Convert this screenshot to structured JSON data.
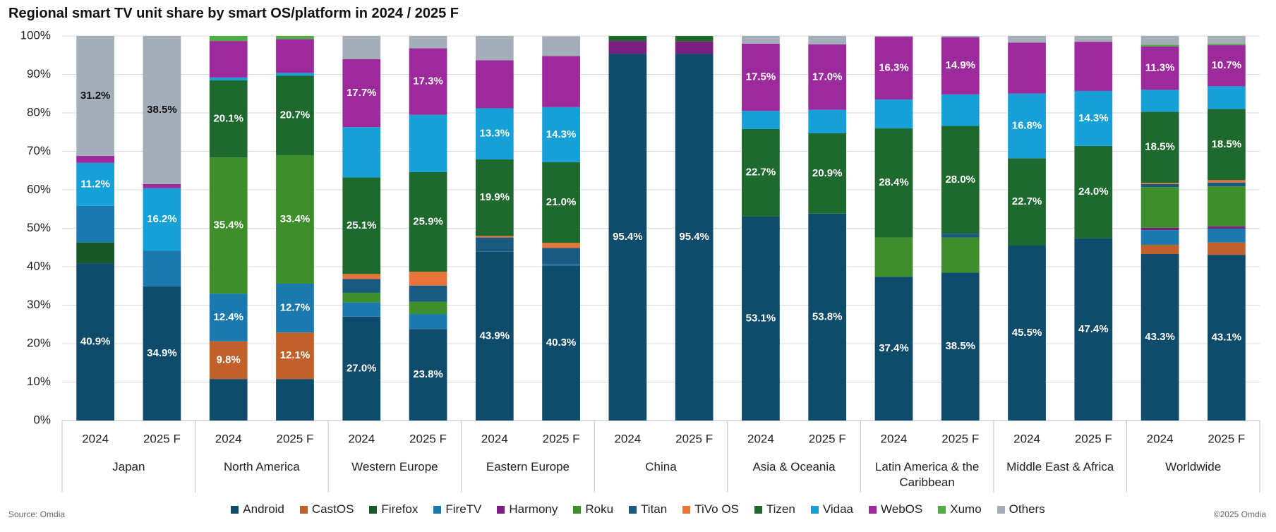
{
  "chart_data": {
    "type": "stacked_bar",
    "title": "Regional smart TV unit share by smart OS/platform in 2024 / 2025 F",
    "source": "Source: Omdia",
    "copyright": "©2025 Omdia",
    "categories": [
      "2024",
      "2025 F",
      "2024",
      "2025 F",
      "2024",
      "2025 F",
      "2024",
      "2025 F",
      "2024",
      "2025 F",
      "2024",
      "2025 F",
      "2024",
      "2025 F",
      "2024",
      "2025 F",
      "2024",
      "2025 F"
    ],
    "groups": [
      "Japan",
      "North America",
      "Western Europe",
      "Eastern Europe",
      "China",
      "Asia & Oceania",
      "Latin America & the Caribbean",
      "Middle East & Africa",
      "Worldwide"
    ],
    "ylim": [
      0,
      100
    ],
    "yticks": [
      {
        "value": 0,
        "label": "0%"
      },
      {
        "value": 10,
        "label": "10%"
      },
      {
        "value": 20,
        "label": "20%"
      },
      {
        "value": 30,
        "label": "30%"
      },
      {
        "value": 40,
        "label": "40%"
      },
      {
        "value": 50,
        "label": "50%"
      },
      {
        "value": 60,
        "label": "60%"
      },
      {
        "value": 70,
        "label": "70%"
      },
      {
        "value": 80,
        "label": "80%"
      },
      {
        "value": 90,
        "label": "90%"
      },
      {
        "value": 100,
        "label": "100%"
      }
    ],
    "grid": true,
    "legend": "bottom",
    "series": [
      {
        "name": "Android",
        "color": "#0f4c6b",
        "values": [
          40.9,
          34.9,
          10.8,
          10.8,
          27.0,
          23.8,
          43.9,
          40.3,
          95.4,
          95.4,
          53.1,
          53.8,
          37.4,
          38.5,
          45.5,
          47.4,
          43.3,
          43.1
        ],
        "value_labels": [
          "40.9%",
          "34.9%",
          null,
          null,
          "27.0%",
          "23.8%",
          "43.9%",
          "40.3%",
          "95.4%",
          "95.4%",
          "53.1%",
          "53.8%",
          "37.4%",
          "38.5%",
          "45.5%",
          "47.4%",
          "43.3%",
          "43.1%"
        ]
      },
      {
        "name": "CastOS",
        "color": "#c0612b",
        "values": [
          0,
          0,
          9.8,
          12.1,
          0,
          0,
          0,
          0,
          0,
          0,
          0,
          0,
          0,
          0,
          0,
          0,
          2.4,
          3.2
        ],
        "value_labels": [
          null,
          null,
          "9.8%",
          "12.1%",
          null,
          null,
          null,
          null,
          null,
          null,
          null,
          null,
          null,
          null,
          null,
          null,
          null,
          null
        ]
      },
      {
        "name": "Firefox",
        "color": "#175a27",
        "values": [
          5.4,
          0,
          0,
          0,
          0,
          0,
          0,
          0,
          0,
          0,
          0,
          0,
          0,
          0,
          0,
          0,
          0,
          0
        ]
      },
      {
        "name": "FireTV",
        "color": "#1a7aaf",
        "values": [
          9.5,
          9.3,
          12.4,
          12.7,
          3.7,
          3.9,
          0,
          0.3,
          0,
          0,
          0,
          0,
          0,
          0,
          0,
          0,
          3.8,
          3.6
        ],
        "value_labels": [
          null,
          null,
          "12.4%",
          "12.7%",
          null,
          null,
          null,
          null,
          null,
          null,
          null,
          null,
          null,
          null,
          null,
          null,
          null,
          null
        ]
      },
      {
        "name": "Harmony",
        "color": "#7a1f80",
        "values": [
          0,
          0,
          0,
          0,
          0,
          0,
          0,
          0,
          3.3,
          3.2,
          0,
          0,
          0,
          0,
          0,
          0,
          0.6,
          0.6
        ]
      },
      {
        "name": "Roku",
        "color": "#3e8e2c",
        "values": [
          0,
          0,
          35.4,
          33.4,
          2.5,
          3.2,
          0,
          0,
          0,
          0,
          0,
          0,
          10.2,
          9.1,
          0,
          0,
          10.6,
          10.4
        ],
        "value_labels": [
          null,
          null,
          "35.4%",
          "33.4%",
          null,
          null,
          null,
          null,
          null,
          null,
          null,
          null,
          null,
          null,
          null,
          null,
          null,
          null
        ]
      },
      {
        "name": "Titan",
        "color": "#1b5a80",
        "values": [
          0,
          0,
          0,
          0,
          3.6,
          4.2,
          3.7,
          4.3,
          0,
          0,
          0,
          0,
          0,
          1.0,
          0,
          0,
          0.8,
          1.0
        ]
      },
      {
        "name": "TiVo OS",
        "color": "#e8743a",
        "values": [
          0,
          0,
          0,
          0,
          1.3,
          3.6,
          0.4,
          1.3,
          0,
          0,
          0,
          0,
          0,
          0,
          0,
          0,
          0.3,
          0.6
        ]
      },
      {
        "name": "Tizen",
        "color": "#1e6a2e",
        "values": [
          0,
          0,
          20.1,
          20.7,
          25.1,
          25.9,
          19.9,
          21.0,
          1.3,
          1.4,
          22.7,
          20.9,
          28.4,
          28.0,
          22.7,
          24.0,
          18.5,
          18.5
        ],
        "value_labels": [
          null,
          null,
          "20.1%",
          "20.7%",
          "25.1%",
          "25.9%",
          "19.9%",
          "21.0%",
          null,
          null,
          "22.7%",
          "20.9%",
          "28.4%",
          "28.0%",
          "22.7%",
          "24.0%",
          "18.5%",
          "18.5%"
        ]
      },
      {
        "name": "Vidaa",
        "color": "#15a0d8",
        "values": [
          11.2,
          16.2,
          0.7,
          0.7,
          13.1,
          14.9,
          13.3,
          14.3,
          0,
          0,
          4.7,
          6.1,
          7.5,
          8.2,
          16.8,
          14.3,
          5.7,
          5.9
        ],
        "value_labels": [
          "11.2%",
          "16.2%",
          null,
          null,
          null,
          null,
          "13.3%",
          "14.3%",
          null,
          null,
          null,
          null,
          null,
          null,
          "16.8%",
          "14.3%",
          null,
          null
        ]
      },
      {
        "name": "WebOS",
        "color": "#9c2a9c",
        "values": [
          1.8,
          1.1,
          9.5,
          8.8,
          17.7,
          17.3,
          12.5,
          13.3,
          0,
          0,
          17.5,
          17.0,
          16.3,
          14.9,
          13.3,
          12.8,
          11.3,
          10.7
        ],
        "value_labels": [
          null,
          null,
          null,
          null,
          "17.7%",
          "17.3%",
          null,
          null,
          null,
          null,
          "17.5%",
          "17.0%",
          "16.3%",
          "14.9%",
          null,
          null,
          "11.3%",
          "10.7%"
        ]
      },
      {
        "name": "Xumo",
        "color": "#4fae43",
        "values": [
          0,
          0,
          1.3,
          0.8,
          0,
          0,
          0,
          0,
          0,
          0,
          0,
          0,
          0,
          0,
          0,
          0,
          0.4,
          0.3
        ]
      },
      {
        "name": "Others",
        "color": "#a4aeb9",
        "values": [
          31.2,
          38.5,
          0,
          0,
          6.0,
          3.2,
          6.3,
          5.1,
          0,
          0,
          2.0,
          2.2,
          0.2,
          0.3,
          1.7,
          1.5,
          2.3,
          2.1
        ],
        "value_labels": [
          "31.2%",
          "38.5%",
          null,
          null,
          null,
          null,
          null,
          null,
          null,
          null,
          null,
          null,
          null,
          null,
          null,
          null,
          null,
          null
        ]
      }
    ]
  }
}
